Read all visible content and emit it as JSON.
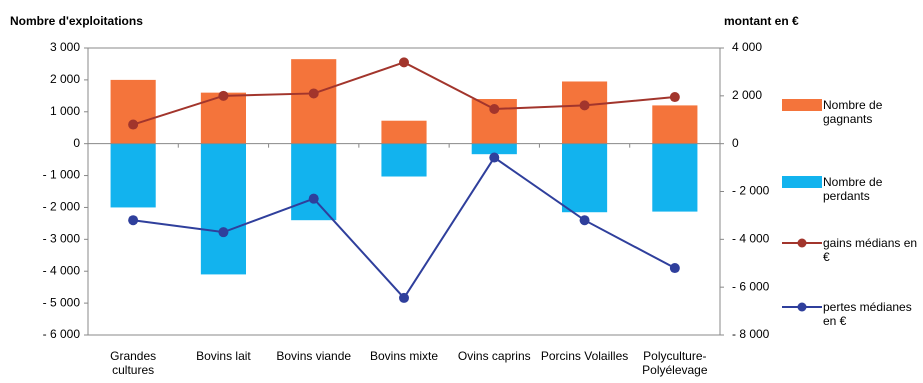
{
  "chart_data": {
    "type": "bar-line",
    "y_label": "Nombre d'exploitations",
    "y2_label": "montant en €",
    "categories": [
      "Grandes cultures",
      "Bovins lait",
      "Bovins viande",
      "Bovins mixte",
      "Ovins caprins",
      "Porcins Volailles",
      "Polyculture-Polyélevage"
    ],
    "ylim": [
      -6000,
      3000
    ],
    "yticks": [
      {
        "value": 3000,
        "label": "3 000"
      },
      {
        "value": 2000,
        "label": "2 000"
      },
      {
        "value": 1000,
        "label": "1 000"
      },
      0,
      {
        "value": -1000,
        "label": "- 1 000"
      },
      {
        "value": -2000,
        "label": "- 2 000"
      },
      {
        "value": -3000,
        "label": "- 3 000"
      },
      {
        "value": -4000,
        "label": "- 4 000"
      },
      {
        "value": -5000,
        "label": "- 5 000"
      },
      {
        "value": -6000,
        "label": "- 6 000"
      }
    ],
    "y2lim": [
      -8000,
      4000
    ],
    "y2ticks": [
      {
        "value": 4000,
        "label": "4 000"
      },
      {
        "value": 2000,
        "label": "2 000"
      },
      0,
      {
        "value": -2000,
        "label": "- 2 000"
      },
      {
        "value": -4000,
        "label": "- 4 000"
      },
      {
        "value": -6000,
        "label": "- 6 000"
      },
      {
        "value": -8000,
        "label": "- 8 000"
      }
    ],
    "series": [
      {
        "name": "Nombre de gagnants",
        "type": "bar",
        "color": "#f4743b",
        "values": [
          2000,
          1600,
          2650,
          720,
          1400,
          1950,
          1200
        ]
      },
      {
        "name": "Nombre de perdants",
        "type": "bar",
        "color": "#12b3ee",
        "values": [
          -2000,
          -4100,
          -2400,
          -1030,
          -330,
          -2150,
          -2130
        ]
      },
      {
        "name": "gains médians en €",
        "type": "line",
        "axis": "y2",
        "color": "#a2352c",
        "values": [
          800,
          2000,
          2100,
          3400,
          1450,
          1600,
          1950
        ]
      },
      {
        "name": "pertes médianes en €",
        "type": "line",
        "axis": "y2",
        "color": "#2f3f9c",
        "values": [
          -3200,
          -3700,
          -2300,
          -6450,
          -580,
          -3200,
          -5200
        ]
      }
    ]
  }
}
